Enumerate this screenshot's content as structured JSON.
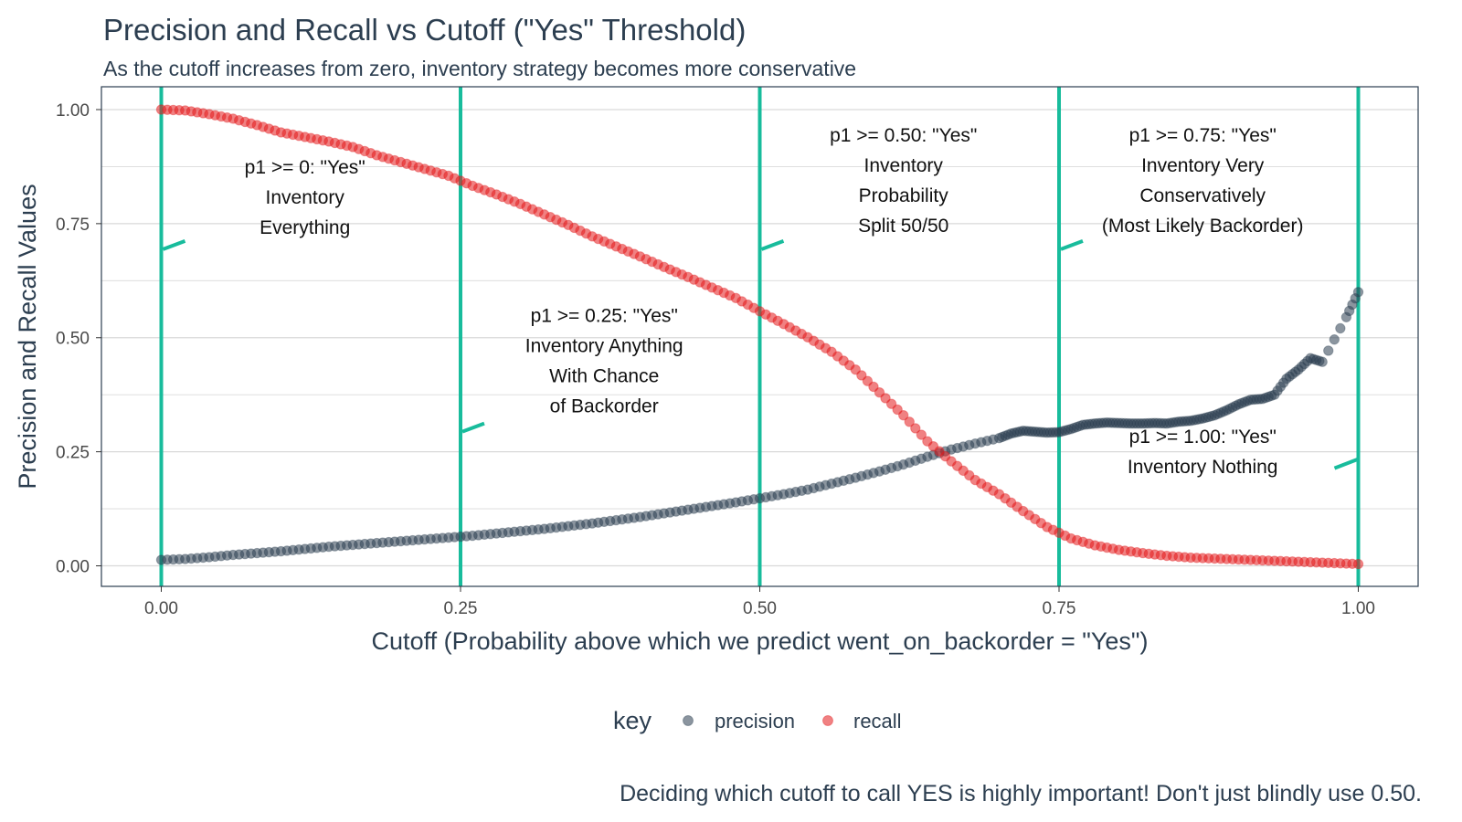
{
  "title": "Precision and Recall vs Cutoff (\"Yes\" Threshold)",
  "subtitle": "As the cutoff increases from zero, inventory strategy becomes more conservative",
  "caption": "Deciding which cutoff to call YES is highly important! Don't just blindly use 0.50.",
  "colors": {
    "precision": "#2c3e50",
    "recall": "#e31a1c",
    "cutoff_lines": "#18bc9c",
    "grid": "#d9d9d9",
    "panel_border": "#2c3e50"
  },
  "chart_data": {
    "type": "scatter",
    "xlabel": "Cutoff (Probability above which we predict went_on_backorder = \"Yes\")",
    "ylabel": "Precision and Recall Values",
    "xlim": [
      -0.05,
      1.05
    ],
    "ylim": [
      -0.045,
      1.05
    ],
    "xticks": [
      "0.00",
      "0.25",
      "0.50",
      "0.75",
      "1.00"
    ],
    "yticks": [
      "0.00",
      "0.25",
      "0.50",
      "0.75",
      "1.00"
    ],
    "grid": true,
    "legend": {
      "title": "key",
      "position": "bottom",
      "entries": [
        "precision",
        "recall"
      ]
    },
    "series": [
      {
        "name": "precision",
        "x": [
          0.0,
          0.02,
          0.04,
          0.06,
          0.08,
          0.1,
          0.12,
          0.14,
          0.16,
          0.18,
          0.2,
          0.22,
          0.24,
          0.26,
          0.28,
          0.3,
          0.32,
          0.34,
          0.36,
          0.38,
          0.4,
          0.42,
          0.44,
          0.46,
          0.48,
          0.5,
          0.52,
          0.54,
          0.56,
          0.58,
          0.6,
          0.62,
          0.64,
          0.66,
          0.68,
          0.7,
          0.71,
          0.72,
          0.73,
          0.74,
          0.75,
          0.76,
          0.77,
          0.78,
          0.79,
          0.8,
          0.81,
          0.82,
          0.83,
          0.84,
          0.85,
          0.86,
          0.87,
          0.88,
          0.89,
          0.9,
          0.91,
          0.92,
          0.93,
          0.94,
          0.95,
          0.96,
          0.97,
          0.99,
          1.0
        ],
        "values": [
          0.013,
          0.015,
          0.019,
          0.024,
          0.028,
          0.032,
          0.037,
          0.042,
          0.046,
          0.05,
          0.054,
          0.058,
          0.062,
          0.066,
          0.071,
          0.076,
          0.081,
          0.087,
          0.093,
          0.1,
          0.107,
          0.115,
          0.123,
          0.131,
          0.139,
          0.148,
          0.157,
          0.167,
          0.18,
          0.193,
          0.207,
          0.222,
          0.239,
          0.255,
          0.268,
          0.28,
          0.29,
          0.296,
          0.294,
          0.292,
          0.293,
          0.3,
          0.309,
          0.312,
          0.314,
          0.313,
          0.312,
          0.312,
          0.313,
          0.312,
          0.316,
          0.318,
          0.323,
          0.33,
          0.341,
          0.354,
          0.364,
          0.366,
          0.375,
          0.41,
          0.43,
          0.455,
          0.447,
          0.545,
          0.6
        ]
      },
      {
        "name": "recall",
        "x": [
          0.0,
          0.02,
          0.04,
          0.06,
          0.08,
          0.1,
          0.12,
          0.14,
          0.16,
          0.18,
          0.2,
          0.22,
          0.24,
          0.26,
          0.28,
          0.3,
          0.32,
          0.34,
          0.36,
          0.38,
          0.4,
          0.42,
          0.44,
          0.46,
          0.48,
          0.5,
          0.52,
          0.54,
          0.56,
          0.58,
          0.6,
          0.62,
          0.64,
          0.66,
          0.68,
          0.7,
          0.72,
          0.74,
          0.76,
          0.78,
          0.8,
          0.82,
          0.84,
          0.86,
          0.88,
          0.9,
          0.92,
          0.94,
          0.96,
          0.98,
          1.0
        ],
        "values": [
          1.0,
          0.998,
          0.99,
          0.98,
          0.966,
          0.95,
          0.94,
          0.93,
          0.918,
          0.9,
          0.885,
          0.87,
          0.855,
          0.833,
          0.814,
          0.793,
          0.77,
          0.747,
          0.722,
          0.7,
          0.678,
          0.655,
          0.633,
          0.61,
          0.587,
          0.558,
          0.53,
          0.501,
          0.469,
          0.43,
          0.38,
          0.33,
          0.273,
          0.229,
          0.188,
          0.157,
          0.12,
          0.085,
          0.06,
          0.045,
          0.035,
          0.028,
          0.022,
          0.018,
          0.016,
          0.014,
          0.012,
          0.01,
          0.008,
          0.006,
          0.004
        ]
      }
    ],
    "cutoff_lines": [
      0.0,
      0.25,
      0.5,
      0.75,
      1.0
    ],
    "annotations": [
      {
        "x": 0.12,
        "y": 0.808,
        "lines": [
          "p1 >= 0: \"Yes\"",
          "Inventory",
          "Everything"
        ]
      },
      {
        "x": 0.37,
        "y": 0.449,
        "lines": [
          "p1 >= 0.25: \"Yes\"",
          "Inventory Anything",
          "With Chance",
          "of Backorder"
        ]
      },
      {
        "x": 0.62,
        "y": 0.845,
        "lines": [
          "p1 >= 0.50: \"Yes\"",
          "Inventory",
          "Probability",
          "Split 50/50"
        ]
      },
      {
        "x": 0.87,
        "y": 0.845,
        "lines": [
          "p1 >= 0.75: \"Yes\"",
          "Inventory Very",
          "Conservatively",
          "(Most Likely Backorder)"
        ]
      },
      {
        "x": 0.87,
        "y": 0.25,
        "lines": [
          "p1 >= 1.00: \"Yes\"",
          "Inventory Nothing"
        ]
      }
    ]
  }
}
